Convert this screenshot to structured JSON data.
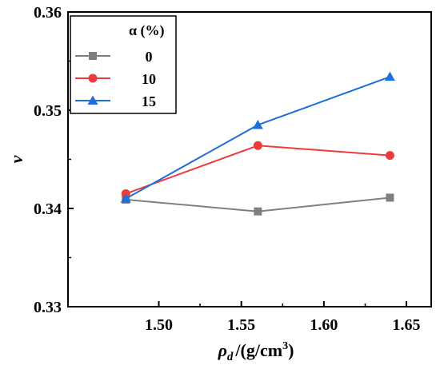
{
  "chart_data": {
    "type": "line",
    "title": "",
    "xlabel": {
      "symbol": "ρ",
      "subscript": "d",
      "unit": "/(g/cm",
      "superscript": "3",
      "close": ")"
    },
    "ylabel": "ν",
    "x": [
      1.48,
      1.56,
      1.64
    ],
    "xlim": [
      1.445,
      1.665
    ],
    "ylim": [
      0.33,
      0.36
    ],
    "xticks": [
      "1.50",
      "1.55",
      "1.60",
      "1.65"
    ],
    "xtick_values": [
      1.5,
      1.55,
      1.6,
      1.65
    ],
    "yticks": [
      "0.33",
      "0.34",
      "0.35",
      "0.36"
    ],
    "ytick_values": [
      0.33,
      0.34,
      0.35,
      0.36
    ],
    "grid": false,
    "legend": {
      "title": "α (%)",
      "placement": "top-left"
    },
    "series": [
      {
        "name": "0",
        "values": [
          0.3409,
          0.3397,
          0.3411
        ],
        "color": "#7f7f7f",
        "marker": "square"
      },
      {
        "name": "10",
        "values": [
          0.3415,
          0.3464,
          0.3454
        ],
        "color": "#ee3a3a",
        "marker": "circle"
      },
      {
        "name": "15",
        "values": [
          0.341,
          0.3485,
          0.3534
        ],
        "color": "#1e6fd9",
        "marker": "triangle"
      }
    ]
  }
}
